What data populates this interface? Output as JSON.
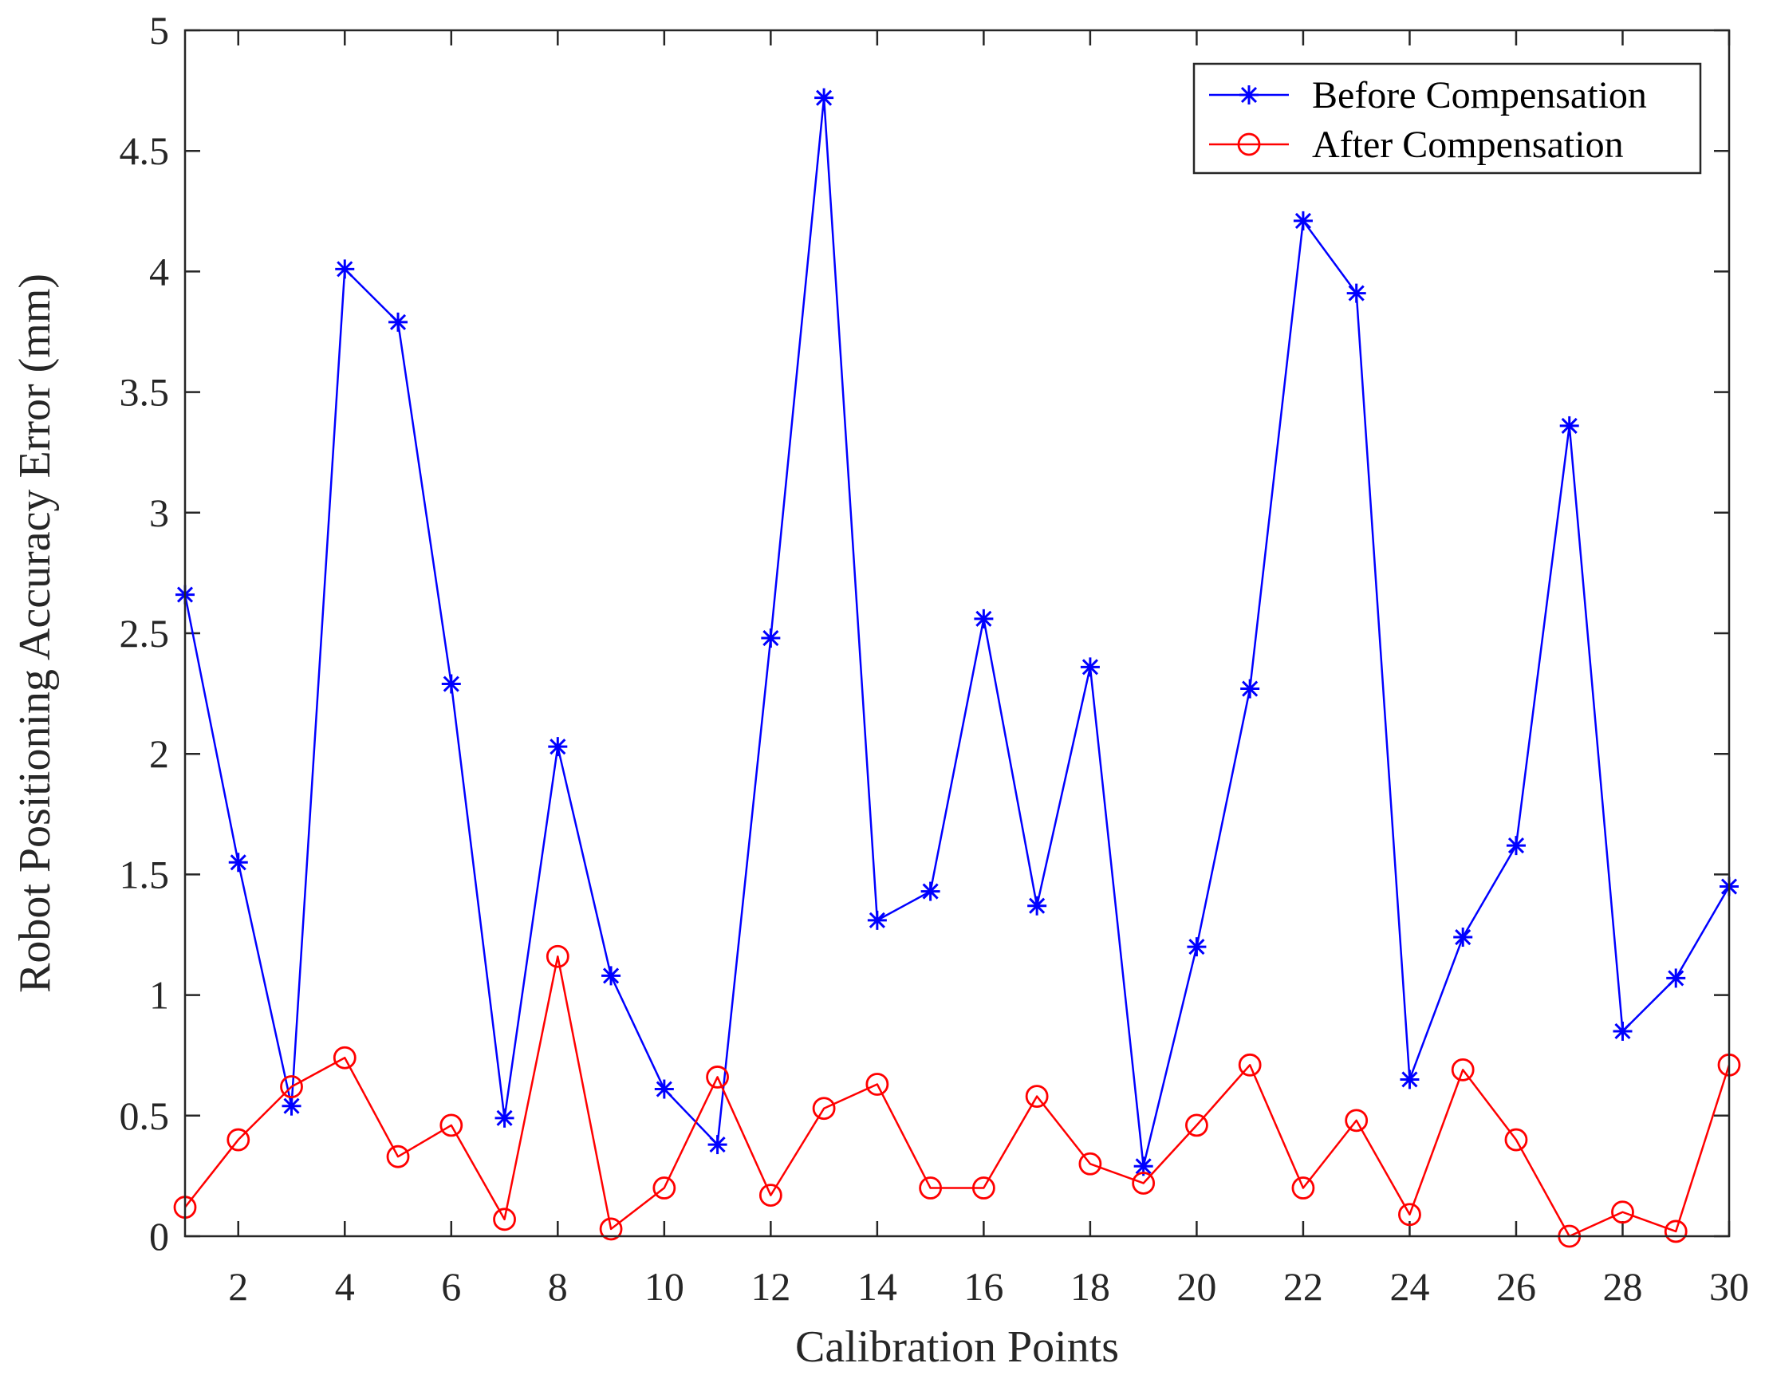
{
  "chart_data": {
    "type": "line",
    "xlabel": "Calibration Points",
    "ylabel": "Robot Positioning Accuracy Error (mm)",
    "xlim": [
      1,
      30
    ],
    "ylim": [
      0,
      5
    ],
    "xticks": [
      2,
      4,
      6,
      8,
      10,
      12,
      14,
      16,
      18,
      20,
      22,
      24,
      26,
      28,
      30
    ],
    "yticks": [
      0,
      0.5,
      1,
      1.5,
      2,
      2.5,
      3,
      3.5,
      4,
      4.5,
      5
    ],
    "grid": false,
    "legend_position": "top-right",
    "x": [
      1,
      2,
      3,
      4,
      5,
      6,
      7,
      8,
      9,
      10,
      11,
      12,
      13,
      14,
      15,
      16,
      17,
      18,
      19,
      20,
      21,
      22,
      23,
      24,
      25,
      26,
      27,
      28,
      29,
      30
    ],
    "series": [
      {
        "name": "Before Compensation",
        "color": "#0000ff",
        "marker": "asterisk",
        "values": [
          2.66,
          1.55,
          0.54,
          4.01,
          3.79,
          2.29,
          0.49,
          2.03,
          1.08,
          0.61,
          0.38,
          2.48,
          4.72,
          1.31,
          1.43,
          2.56,
          1.37,
          2.36,
          0.29,
          1.2,
          2.27,
          4.21,
          3.91,
          0.65,
          1.24,
          1.62,
          3.36,
          0.85,
          1.07,
          1.45
        ]
      },
      {
        "name": "After Compensation",
        "color": "#ff0000",
        "marker": "circle",
        "values": [
          0.12,
          0.4,
          0.62,
          0.74,
          0.33,
          0.46,
          0.07,
          1.16,
          0.03,
          0.2,
          0.66,
          0.17,
          0.53,
          0.63,
          0.2,
          0.2,
          0.58,
          0.3,
          0.22,
          0.46,
          0.71,
          0.2,
          0.48,
          0.09,
          0.69,
          0.4,
          0.0,
          0.1,
          0.02,
          0.71
        ]
      }
    ]
  }
}
